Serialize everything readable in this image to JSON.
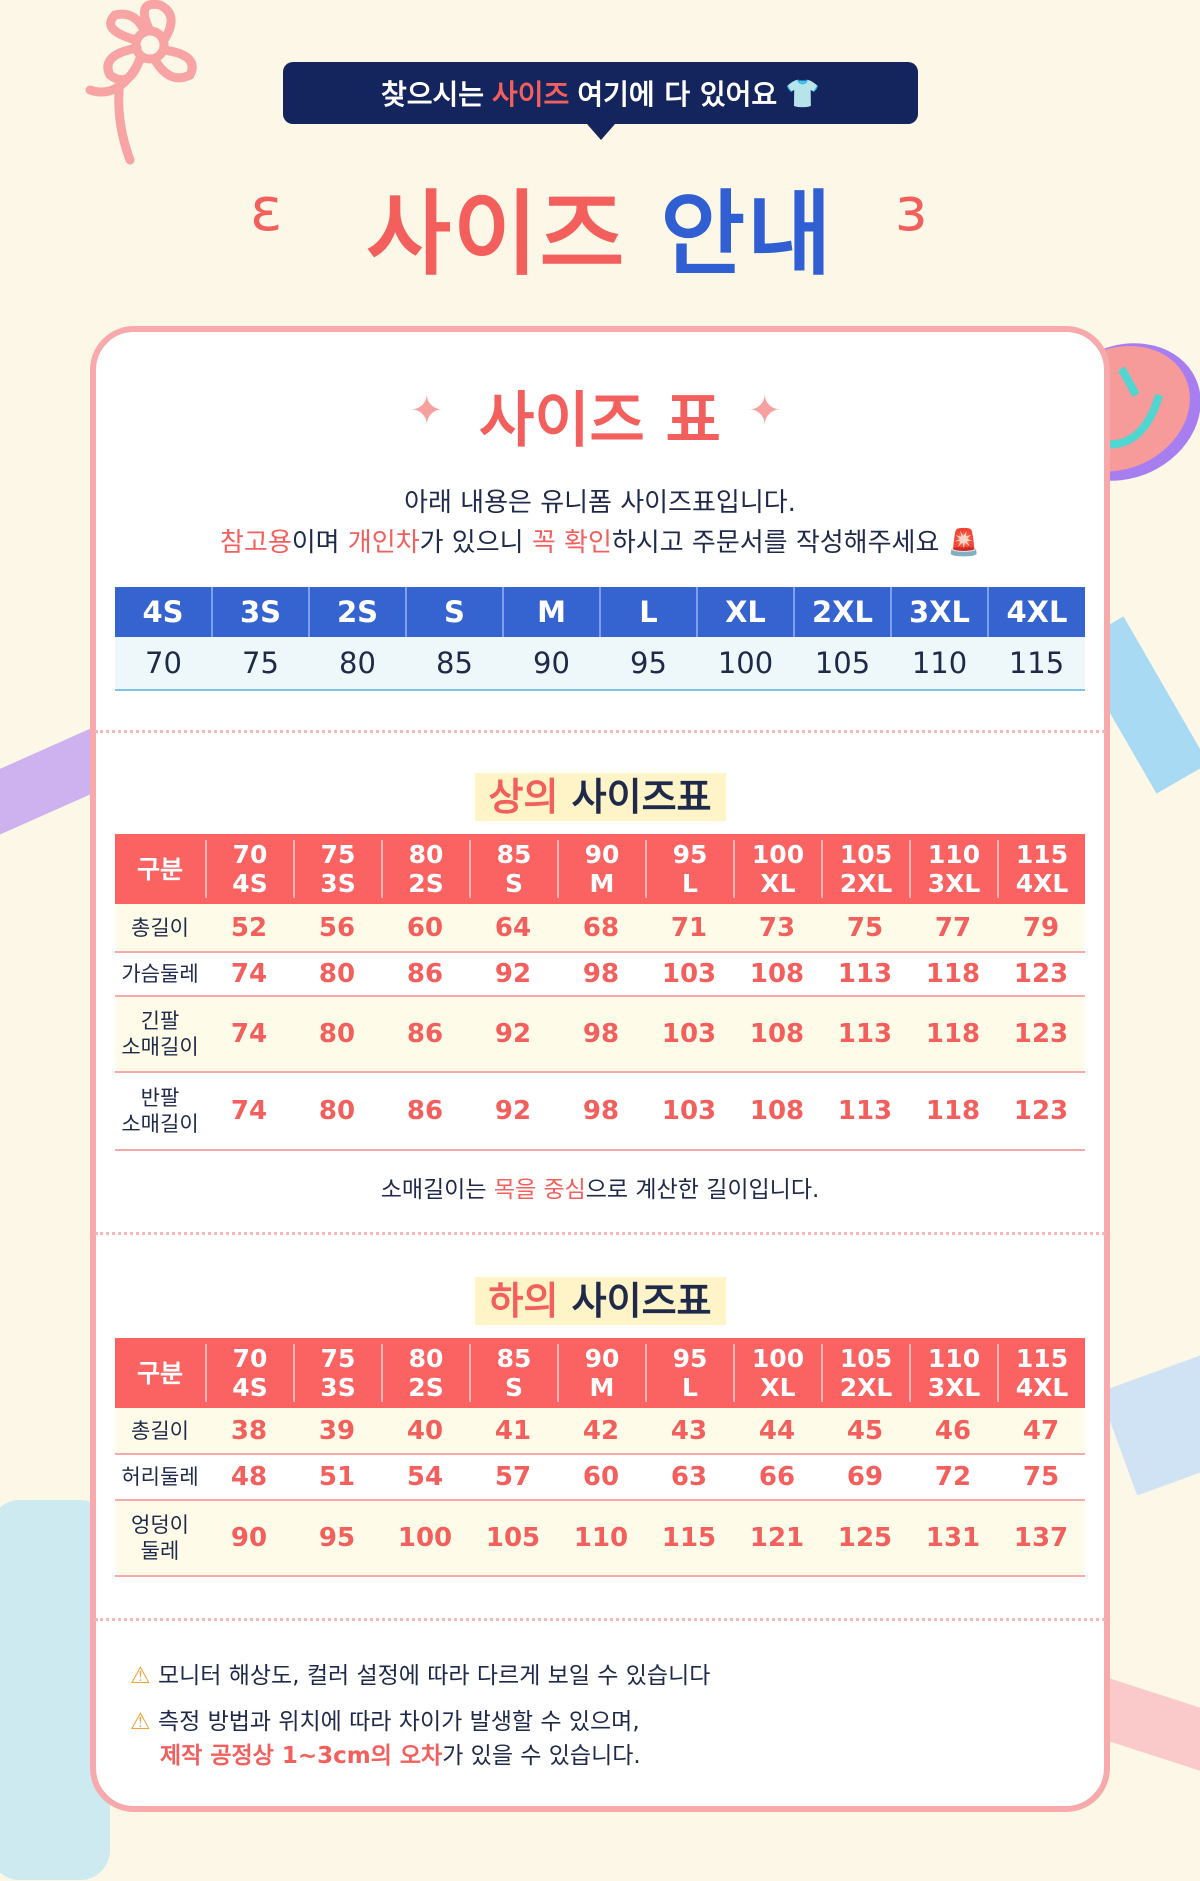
{
  "banner": {
    "pre": "찾으시는 ",
    "accent": "사이즈",
    "post": " 여기에 다 있어요",
    "icon": "t-shirt-icon"
  },
  "title": {
    "part1": "사이즈",
    "part2": "안내"
  },
  "size_chart": {
    "title": "사이즈 표",
    "desc1": "아래 내용은 유니폼 사이즈표입니다.",
    "desc2_accent1": "참고용",
    "desc2_mid1": "이며 ",
    "desc2_accent2": "개인차",
    "desc2_mid2": "가 있으니 ",
    "desc2_accent3": "꼭 확인",
    "desc2_end": "하시고 주문서를 작성해주세요",
    "siren_icon": "siren-icon",
    "sizes": [
      "4S",
      "3S",
      "2S",
      "S",
      "M",
      "L",
      "XL",
      "2XL",
      "3XL",
      "4XL"
    ],
    "numbers": [
      "70",
      "75",
      "80",
      "85",
      "90",
      "95",
      "100",
      "105",
      "110",
      "115"
    ]
  },
  "top": {
    "title_accent": "상의",
    "title_rest": "사이즈표",
    "corner": "구분",
    "rows": [
      {
        "label": "총길이",
        "values": [
          "52",
          "56",
          "60",
          "64",
          "68",
          "71",
          "73",
          "75",
          "77",
          "79"
        ]
      },
      {
        "label": "가슴둘레",
        "values": [
          "74",
          "80",
          "86",
          "92",
          "98",
          "103",
          "108",
          "113",
          "118",
          "123"
        ]
      },
      {
        "label": "긴팔\n소매길이",
        "values": [
          "74",
          "80",
          "86",
          "92",
          "98",
          "103",
          "108",
          "113",
          "118",
          "123"
        ]
      },
      {
        "label": "반팔\n소매길이",
        "values": [
          "74",
          "80",
          "86",
          "92",
          "98",
          "103",
          "108",
          "113",
          "118",
          "123"
        ]
      }
    ],
    "note_pre": "소매길이는 ",
    "note_accent": "목을 중심",
    "note_post": "으로 계산한 길이입니다."
  },
  "bottom": {
    "title_accent": "하의",
    "title_rest": "사이즈표",
    "corner": "구분",
    "rows": [
      {
        "label": "총길이",
        "values": [
          "38",
          "39",
          "40",
          "41",
          "42",
          "43",
          "44",
          "45",
          "46",
          "47"
        ]
      },
      {
        "label": "허리둘레",
        "values": [
          "48",
          "51",
          "54",
          "57",
          "60",
          "63",
          "66",
          "69",
          "72",
          "75"
        ]
      },
      {
        "label": "엉덩이\n둘레",
        "values": [
          "90",
          "95",
          "100",
          "105",
          "110",
          "115",
          "121",
          "125",
          "131",
          "137"
        ]
      }
    ]
  },
  "warnings": {
    "w1": "모니터 해상도, 컬러 설정에 따라 다르게 보일 수 있습니다",
    "w2": "측정 방법과 위치에 따라 차이가 발생할 수 있으며,",
    "w3_accent": "제작 공정상 1~3cm의 오차",
    "w3_post": "가 있을 수 있습니다.",
    "icon": "warning-icon"
  },
  "colors": {
    "coral": "#f25f5c",
    "blue": "#3563d0",
    "navy": "#14245c",
    "card_border": "#f7a9ab"
  }
}
